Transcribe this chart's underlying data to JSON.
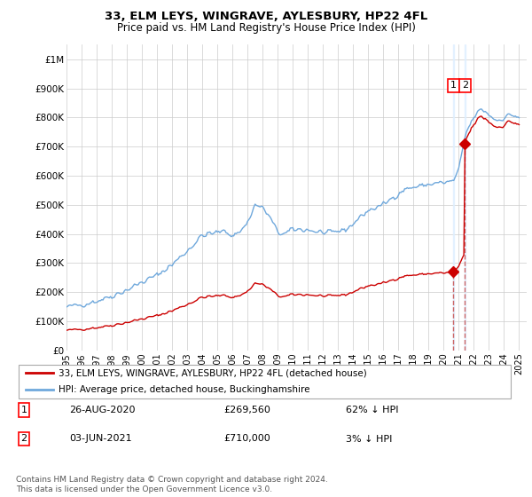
{
  "title": "33, ELM LEYS, WINGRAVE, AYLESBURY, HP22 4FL",
  "subtitle": "Price paid vs. HM Land Registry's House Price Index (HPI)",
  "xlim_start": 1995.0,
  "xlim_end": 2025.5,
  "ylim": [
    0,
    1050000
  ],
  "yticks": [
    0,
    100000,
    200000,
    300000,
    400000,
    500000,
    600000,
    700000,
    800000,
    900000,
    1000000
  ],
  "ytick_labels": [
    "£0",
    "£100K",
    "£200K",
    "£300K",
    "£400K",
    "£500K",
    "£600K",
    "£700K",
    "£800K",
    "£900K",
    "£1M"
  ],
  "legend1_label": "33, ELM LEYS, WINGRAVE, AYLESBURY, HP22 4FL (detached house)",
  "legend2_label": "HPI: Average price, detached house, Buckinghamshire",
  "annotation1_num": "1",
  "annotation1_date": "26-AUG-2020",
  "annotation1_price": "£269,560",
  "annotation1_hpi": "62% ↓ HPI",
  "annotation2_num": "2",
  "annotation2_date": "03-JUN-2021",
  "annotation2_price": "£710,000",
  "annotation2_hpi": "3% ↓ HPI",
  "footer": "Contains HM Land Registry data © Crown copyright and database right 2024.\nThis data is licensed under the Open Government Licence v3.0.",
  "sale1_x": 2020.646,
  "sale1_y": 269560,
  "sale2_x": 2021.415,
  "sale2_y": 710000,
  "line_color_red": "#cc0000",
  "line_color_blue": "#6fa8dc",
  "dashed_color": "#cc6666",
  "bg_band_color": "#ddeeff"
}
